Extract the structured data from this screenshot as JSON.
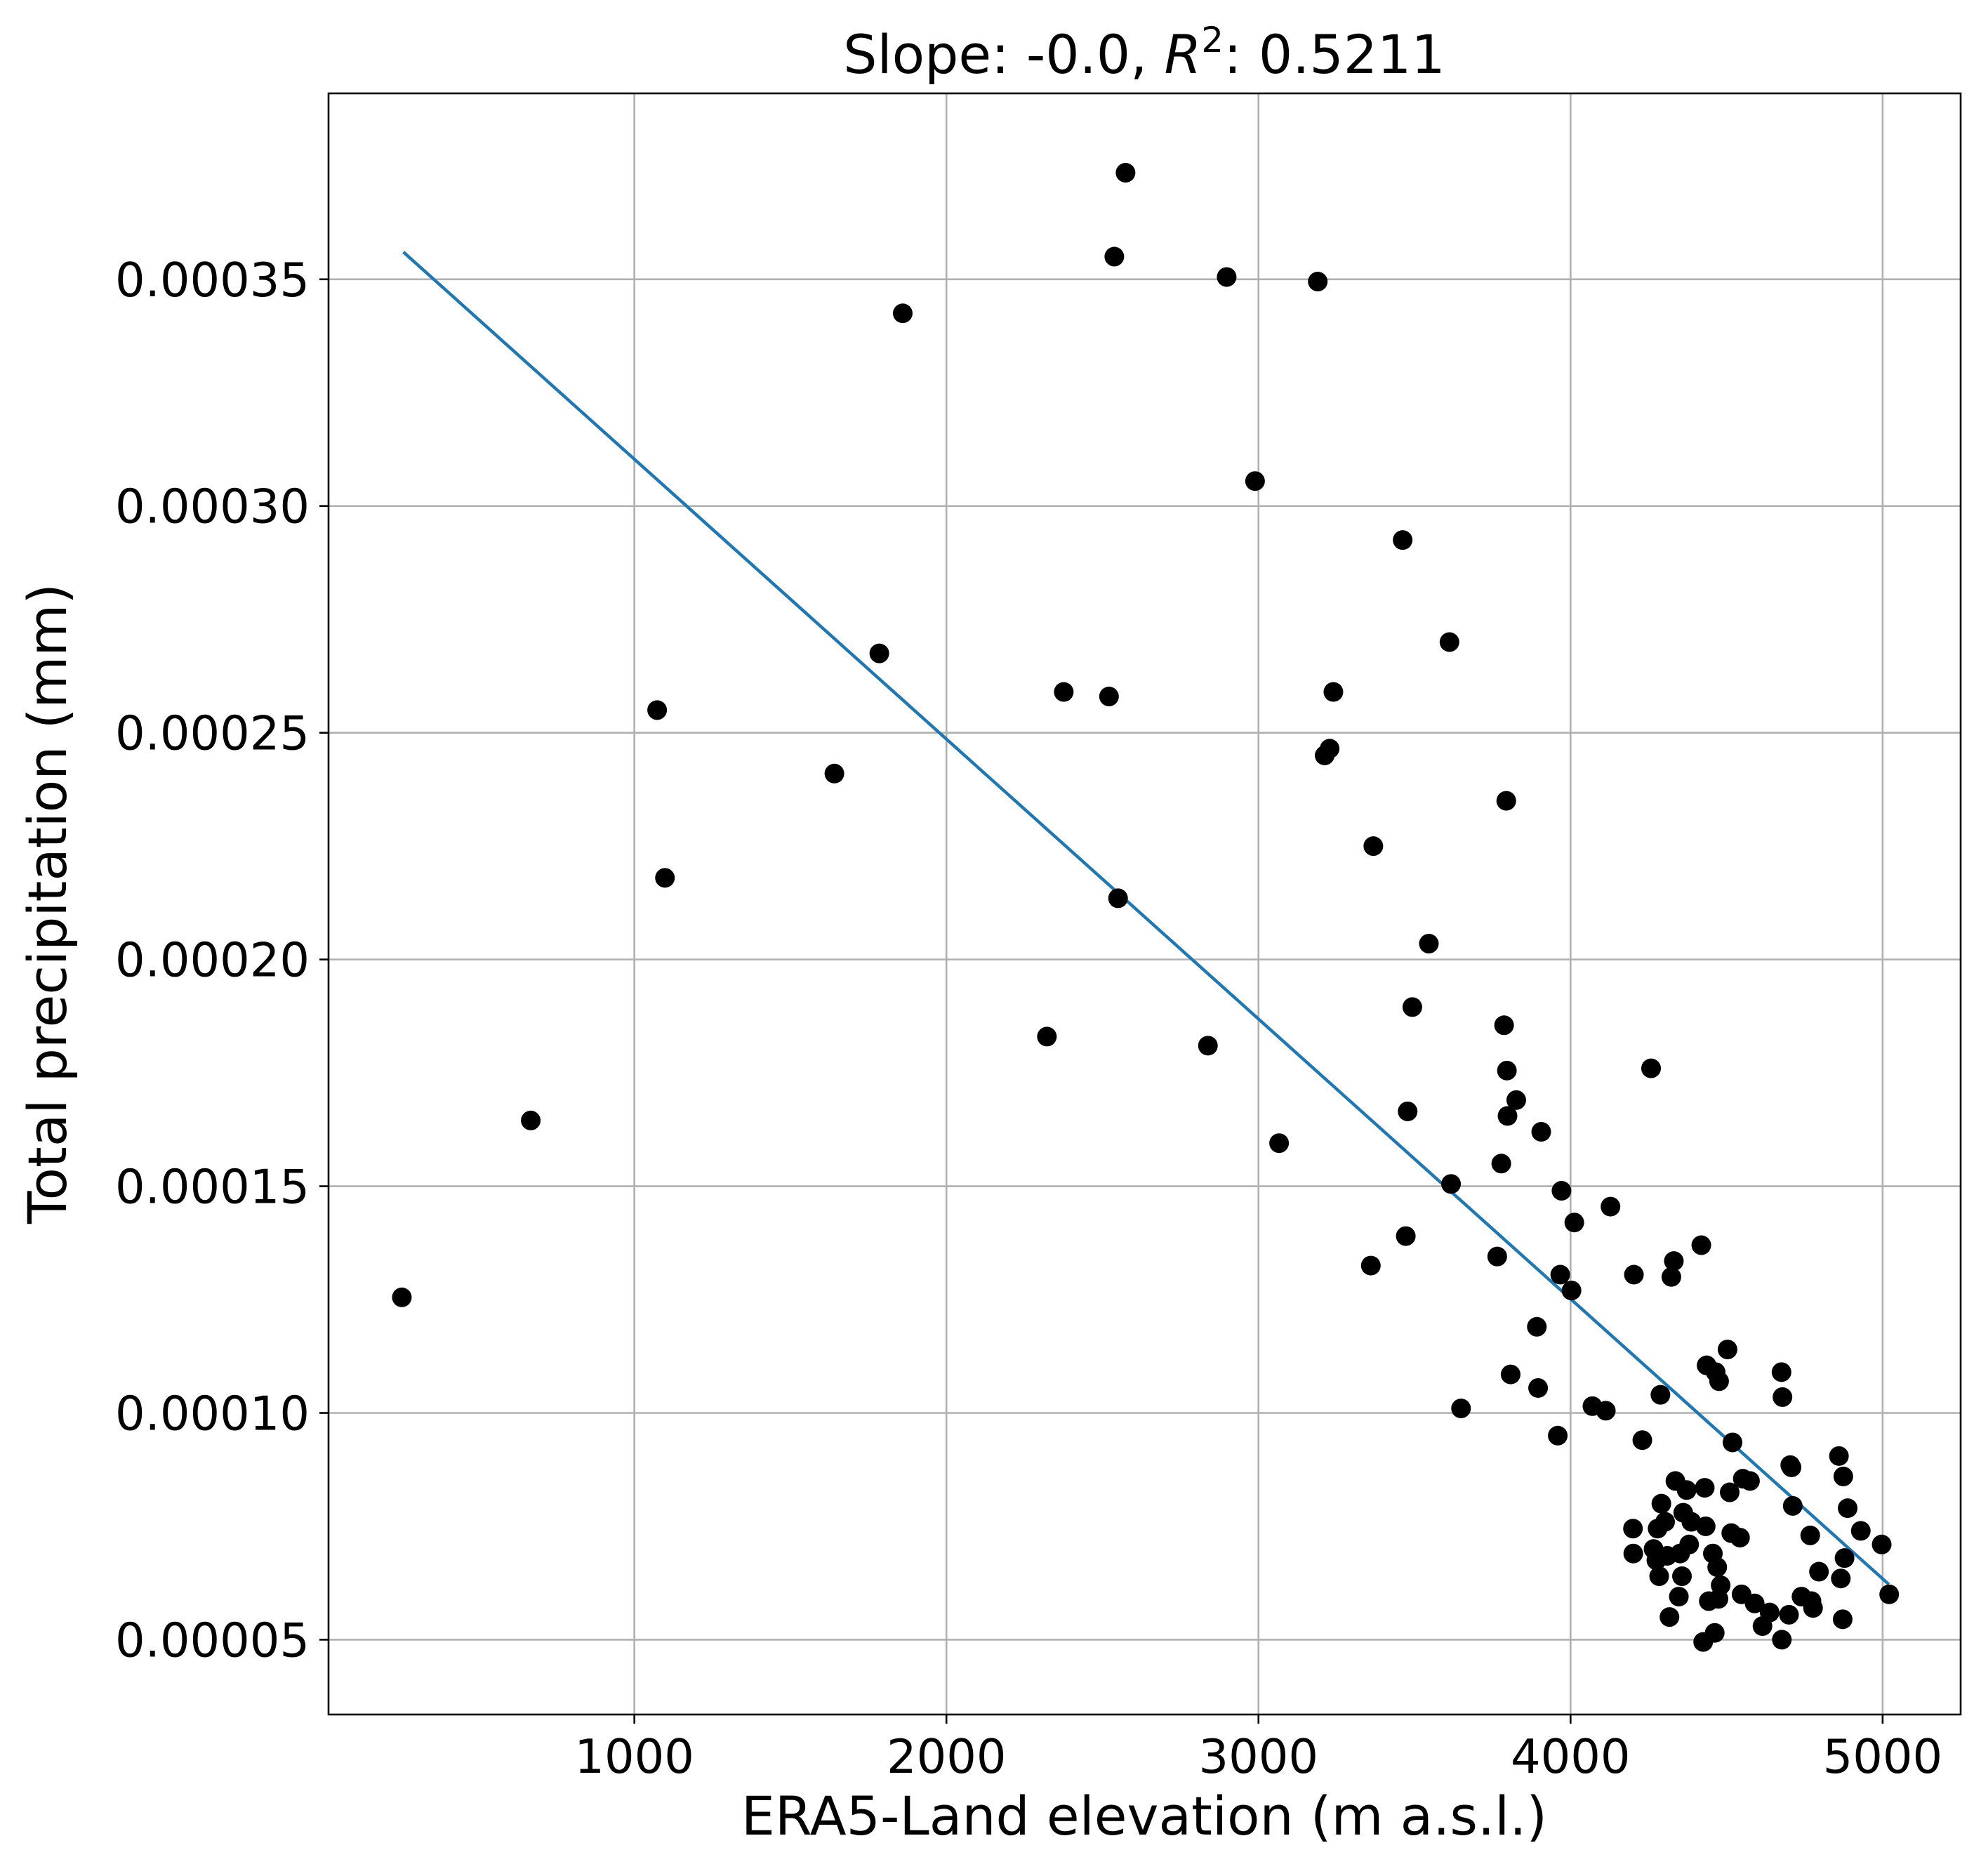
{
  "chart_data": {
    "type": "scatter",
    "title": {
      "prefix": "Slope: -0.0, ",
      "r_symbol": "R",
      "r_power": "2",
      "suffix": ": 0.5211"
    },
    "xlabel": "ERA5-Land elevation (m a.s.l.)",
    "ylabel": "Total precipitation (mm)",
    "xlim": [
      20,
      5250
    ],
    "ylim": [
      3.35e-05,
      0.000391
    ],
    "xticks": [
      1000,
      2000,
      3000,
      4000,
      5000
    ],
    "xtick_labels": [
      "1000",
      "2000",
      "3000",
      "4000",
      "5000"
    ],
    "yticks": [
      5e-05,
      0.0001,
      0.00015,
      0.0002,
      0.00025,
      0.0003,
      0.00035
    ],
    "ytick_labels": [
      "0.00005",
      "0.00010",
      "0.00015",
      "0.00020",
      "0.00025",
      "0.00030",
      "0.00035"
    ],
    "grid": true,
    "point_color": "#000000",
    "line_color": "#1f77b4",
    "fit_line": {
      "x": [
        260,
        5020
      ],
      "y": [
        0.000356,
        6.22e-05
      ]
    },
    "points": [
      [
        255,
        0.0001255
      ],
      [
        668,
        0.0001645
      ],
      [
        1073,
        0.000255
      ],
      [
        1098,
        0.000218
      ],
      [
        1641,
        0.000241
      ],
      [
        1785,
        0.0002675
      ],
      [
        1860,
        0.0003425
      ],
      [
        2322,
        0.000183
      ],
      [
        2376,
        0.000259
      ],
      [
        2521,
        0.000258
      ],
      [
        2538,
        0.000355
      ],
      [
        2550,
        0.0002135
      ],
      [
        2574,
        0.0003735
      ],
      [
        2838,
        0.000181
      ],
      [
        2898,
        0.0003505
      ],
      [
        2989,
        0.0003055
      ],
      [
        3066,
        0.0001595
      ],
      [
        3190,
        0.0003495
      ],
      [
        3212,
        0.000245
      ],
      [
        3228,
        0.0002465
      ],
      [
        3240,
        0.000259
      ],
      [
        3360,
        0.0001325
      ],
      [
        3368,
        0.000225
      ],
      [
        3462,
        0.0002925
      ],
      [
        3472,
        0.000139
      ],
      [
        3478,
        0.0001665
      ],
      [
        3493,
        0.0001895
      ],
      [
        3546,
        0.0002035
      ],
      [
        3612,
        0.00027
      ],
      [
        3617,
        0.0001505
      ],
      [
        3649,
        0.000101
      ],
      [
        3765,
        0.0001345
      ],
      [
        3778,
        0.000155
      ],
      [
        3787,
        0.0001855
      ],
      [
        3794,
        0.000235
      ],
      [
        3796,
        0.0001755
      ],
      [
        3798,
        0.0001655
      ],
      [
        3808,
        0.0001085
      ],
      [
        3826,
        0.000169
      ],
      [
        3892,
        0.000119
      ],
      [
        3896,
        0.0001055
      ],
      [
        3906,
        0.000162
      ],
      [
        3959,
        9.5e-05
      ],
      [
        3967,
        0.0001305
      ],
      [
        3971,
        0.000149
      ],
      [
        4003,
        0.000127
      ],
      [
        4012,
        0.000142
      ],
      [
        4070,
        0.0001015
      ],
      [
        4113,
        0.0001005
      ],
      [
        4128,
        0.0001455
      ],
      [
        4200,
        7.45e-05
      ],
      [
        4201,
        6.9e-05
      ],
      [
        4203,
        0.0001305
      ],
      [
        4230,
        9.4e-05
      ],
      [
        4258,
        0.000176
      ],
      [
        4266,
        7e-05
      ],
      [
        4275,
        6.75e-05
      ],
      [
        4279,
        7.45e-05
      ],
      [
        4284,
        6.4e-05
      ],
      [
        4288,
        0.000104
      ],
      [
        4291,
        8e-05
      ],
      [
        4303,
        7.6e-05
      ],
      [
        4310,
        6.85e-05
      ],
      [
        4317,
        5.5e-05
      ],
      [
        4323,
        0.00013
      ],
      [
        4331,
        0.0001335
      ],
      [
        4336,
        8.5e-05
      ],
      [
        4347,
        5.95e-05
      ],
      [
        4351,
        6.9e-05
      ],
      [
        4357,
        6.4e-05
      ],
      [
        4361,
        7.8e-05
      ],
      [
        4372,
        8.3e-05
      ],
      [
        4380,
        7.1e-05
      ],
      [
        4387,
        7.6e-05
      ],
      [
        4419,
        0.000137
      ],
      [
        4425,
        4.95e-05
      ],
      [
        4430,
        8.35e-05
      ],
      [
        4433,
        7.5e-05
      ],
      [
        4436,
        0.0001105
      ],
      [
        4443,
        5.85e-05
      ],
      [
        4456,
        6.9e-05
      ],
      [
        4462,
        5.15e-05
      ],
      [
        4465,
        0.000109
      ],
      [
        4470,
        6.6e-05
      ],
      [
        4474,
        5.9e-05
      ],
      [
        4476,
        0.000107
      ],
      [
        4481,
        6.2e-05
      ],
      [
        4503,
        0.000114
      ],
      [
        4510,
        8.25e-05
      ],
      [
        4515,
        7.35e-05
      ],
      [
        4519,
        9.35e-05
      ],
      [
        4543,
        7.25e-05
      ],
      [
        4548,
        6e-05
      ],
      [
        4552,
        8.55e-05
      ],
      [
        4575,
        8.5e-05
      ],
      [
        4590,
        5.8e-05
      ],
      [
        4615,
        5.3e-05
      ],
      [
        4638,
        5.6e-05
      ],
      [
        4676,
        0.000109
      ],
      [
        4677,
        5e-05
      ],
      [
        4679,
        0.0001035
      ],
      [
        4700,
        5.55e-05
      ],
      [
        4704,
        8.85e-05
      ],
      [
        4708,
        8.8e-05
      ],
      [
        4712,
        7.95e-05
      ],
      [
        4740,
        5.95e-05
      ],
      [
        4768,
        7.3e-05
      ],
      [
        4772,
        5.85e-05
      ],
      [
        4777,
        5.7e-05
      ],
      [
        4796,
        6.5e-05
      ],
      [
        4860,
        9.05e-05
      ],
      [
        4866,
        6.35e-05
      ],
      [
        4872,
        5.45e-05
      ],
      [
        4874,
        8.6e-05
      ],
      [
        4878,
        6.8e-05
      ],
      [
        4888,
        7.9e-05
      ],
      [
        4930,
        7.4e-05
      ],
      [
        4997,
        7.1e-05
      ],
      [
        5021,
        6e-05
      ]
    ]
  }
}
